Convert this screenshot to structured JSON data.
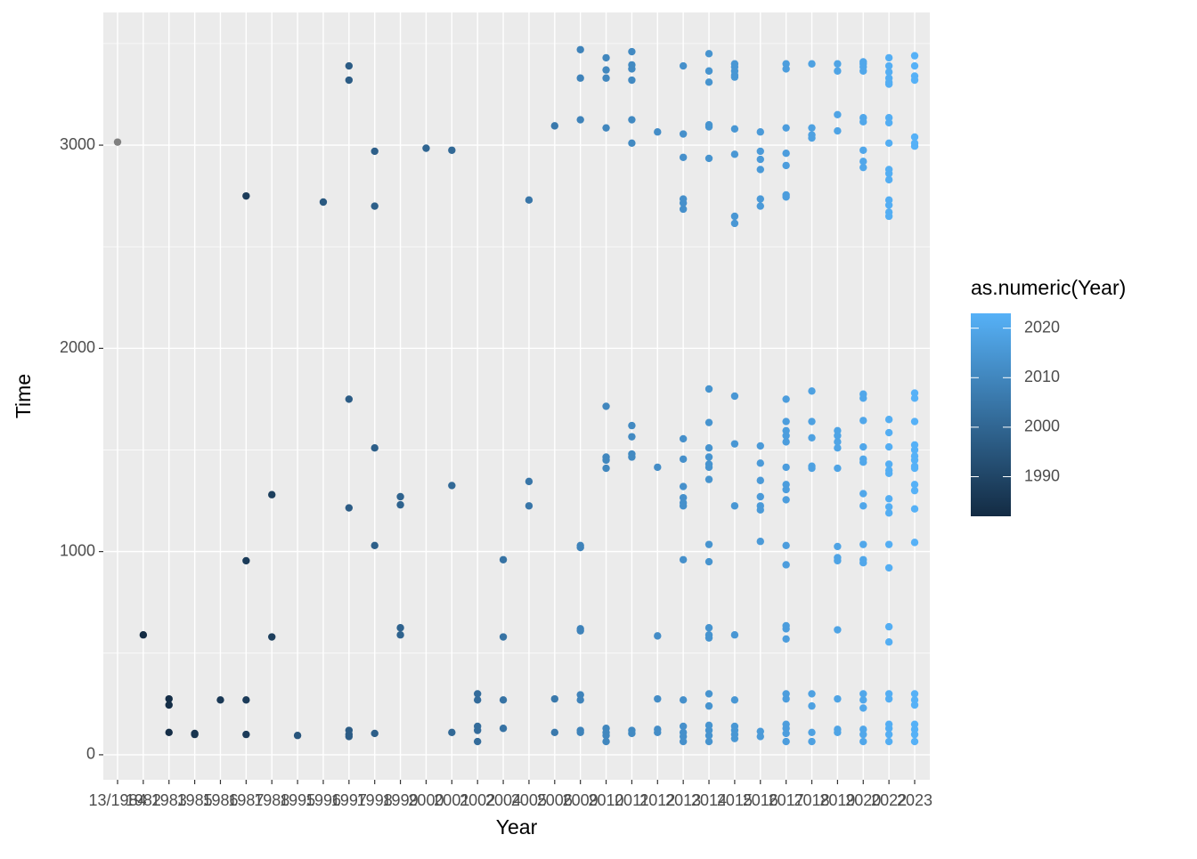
{
  "chart_data": {
    "type": "scatter",
    "x_label": "Year",
    "y_label": "Time",
    "categories": [
      "13/1984",
      "1982",
      "1983",
      "1985",
      "1986",
      "1987",
      "1988",
      "1995",
      "1996",
      "1997",
      "1998",
      "1999",
      "2000",
      "2001",
      "2002",
      "2004",
      "2005",
      "2006",
      "2009",
      "2010",
      "2011",
      "2012",
      "2013",
      "2014",
      "2015",
      "2016",
      "2017",
      "2018",
      "2019",
      "2020",
      "2022",
      "2023"
    ],
    "values": [
      [
        3015
      ],
      [
        590
      ],
      [
        275,
        245,
        110
      ],
      [
        105,
        100
      ],
      [
        270
      ],
      [
        2750,
        955,
        270,
        100
      ],
      [
        1280,
        580
      ],
      [
        95
      ],
      [
        2720
      ],
      [
        3390,
        3320,
        1750,
        1215,
        120,
        100,
        90
      ],
      [
        2970,
        2700,
        1510,
        1030,
        105
      ],
      [
        1270,
        1230,
        625,
        590
      ],
      [
        2985
      ],
      [
        2975,
        1325,
        110
      ],
      [
        300,
        270,
        140,
        120,
        65
      ],
      [
        960,
        580,
        270,
        130
      ],
      [
        2730,
        1345,
        1225
      ],
      [
        3095,
        275,
        110
      ],
      [
        3470,
        3330,
        3125,
        1030,
        1020,
        620,
        610,
        295,
        270,
        120,
        110
      ],
      [
        3430,
        3370,
        3330,
        3085,
        1715,
        1465,
        1450,
        1410,
        130,
        110,
        95,
        65
      ],
      [
        3460,
        3395,
        3375,
        3320,
        3125,
        3010,
        1620,
        1565,
        1480,
        1465,
        120,
        105
      ],
      [
        3065,
        1415,
        585,
        275,
        125,
        110
      ],
      [
        3390,
        3055,
        2940,
        2735,
        2715,
        2685,
        1555,
        1455,
        1320,
        1265,
        1240,
        1225,
        960,
        270,
        140,
        110,
        90,
        65
      ],
      [
        3450,
        3365,
        3310,
        3100,
        3090,
        2935,
        1800,
        1635,
        1510,
        1465,
        1430,
        1415,
        1355,
        1035,
        950,
        625,
        590,
        575,
        300,
        240,
        145,
        120,
        95,
        65
      ],
      [
        3400,
        3385,
        3365,
        3345,
        3335,
        3080,
        2955,
        2650,
        2615,
        1765,
        1530,
        1225,
        590,
        270,
        140,
        120,
        100,
        80
      ],
      [
        3065,
        2970,
        2930,
        2880,
        2735,
        2700,
        1520,
        1435,
        1350,
        1270,
        1225,
        1205,
        1050,
        115,
        90
      ],
      [
        3400,
        3375,
        3085,
        2960,
        2900,
        2755,
        2745,
        1750,
        1640,
        1595,
        1570,
        1540,
        1415,
        1330,
        1305,
        1255,
        1030,
        935,
        635,
        620,
        570,
        300,
        275,
        150,
        130,
        105,
        65
      ],
      [
        3400,
        3085,
        3050,
        3035,
        1790,
        1640,
        1560,
        1420,
        1410,
        300,
        240,
        110,
        65
      ],
      [
        3400,
        3365,
        3150,
        3070,
        1595,
        1570,
        1540,
        1510,
        1410,
        1025,
        970,
        955,
        615,
        275,
        125,
        110
      ],
      [
        3410,
        3400,
        3385,
        3365,
        3135,
        3115,
        2975,
        2920,
        2890,
        1775,
        1755,
        1645,
        1515,
        1455,
        1440,
        1285,
        1225,
        1035,
        960,
        945,
        300,
        270,
        230,
        125,
        100,
        65
      ],
      [
        3430,
        3390,
        3360,
        3330,
        3310,
        3300,
        3135,
        3110,
        3010,
        2880,
        2860,
        2830,
        2730,
        2705,
        2670,
        2650,
        1650,
        1585,
        1515,
        1430,
        1400,
        1385,
        1260,
        1220,
        1190,
        1035,
        920,
        630,
        555,
        300,
        275,
        150,
        130,
        100,
        65
      ],
      [
        3440,
        3390,
        3340,
        3320,
        3040,
        3010,
        2995,
        1780,
        1755,
        1640,
        1525,
        1500,
        1470,
        1450,
        1420,
        1410,
        1330,
        1300,
        1210,
        1045,
        300,
        270,
        245,
        150,
        125,
        100,
        65
      ]
    ],
    "ylim": [
      -123,
      3653
    ],
    "yticks": [
      0,
      1000,
      2000,
      3000
    ],
    "grid": true,
    "legend": {
      "title": "as.numeric(Year)",
      "limits": [
        1982,
        2023
      ],
      "ticks": [
        1990,
        2000,
        2010,
        2020
      ],
      "low_color": "#132B43",
      "high_color": "#56B1F7",
      "na_color": "#808080"
    }
  }
}
